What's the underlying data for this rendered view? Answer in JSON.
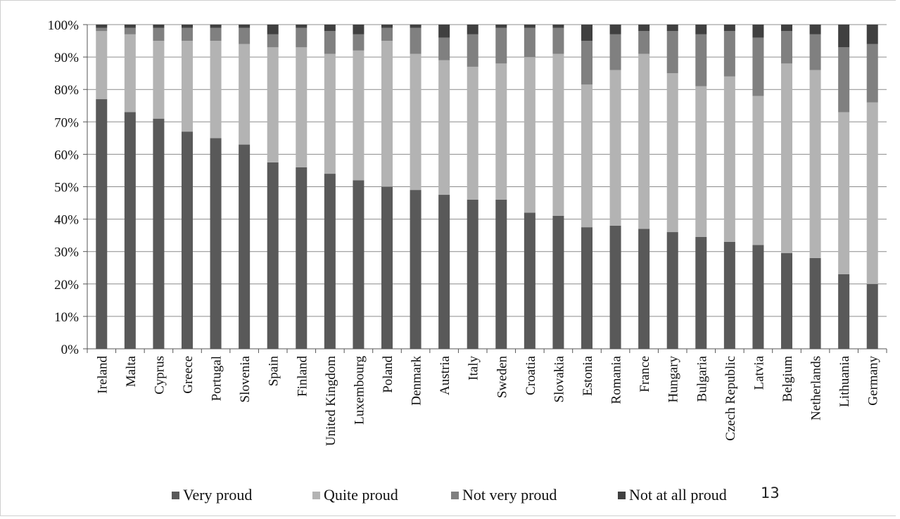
{
  "chart_data": {
    "type": "bar",
    "stacked": true,
    "title": "",
    "xlabel": "",
    "ylabel": "",
    "ylim": [
      0,
      100
    ],
    "yticks": [
      "0%",
      "10%",
      "20%",
      "30%",
      "40%",
      "50%",
      "60%",
      "70%",
      "80%",
      "90%",
      "100%"
    ],
    "grid": true,
    "legend_position": "bottom",
    "categories": [
      "Ireland",
      "Malta",
      "Cyprus",
      "Greece",
      "Portugal",
      "Slovenia",
      "Spain",
      "Finland",
      "United Kingdom",
      "Luxembourg",
      "Poland",
      "Denmark",
      "Austria",
      "Italy",
      "Sweden",
      "Croatia",
      "Slovakia",
      "Estonia",
      "Romania",
      "France",
      "Hungary",
      "Bulgaria",
      "Czech Republic",
      "Latvia",
      "Belgium",
      "Netherlands",
      "Lithuania",
      "Germany"
    ],
    "series": [
      {
        "name": "Very proud",
        "color": "#595959",
        "values": [
          77,
          73,
          71,
          67,
          65,
          63,
          57.5,
          56,
          54,
          52,
          50,
          49,
          47.5,
          46,
          46,
          42,
          41,
          37.5,
          38,
          37,
          36,
          34.5,
          33,
          32,
          29.5,
          28,
          23,
          20
        ]
      },
      {
        "name": "Quite proud",
        "color": "#b3b3b3",
        "values": [
          21,
          24,
          24,
          28,
          30,
          31,
          35.5,
          37,
          37,
          40,
          45,
          42,
          41.5,
          41,
          42,
          48,
          50,
          44,
          48,
          54,
          49,
          46.5,
          51,
          46,
          58.5,
          58,
          50,
          56
        ]
      },
      {
        "name": "Not very proud",
        "color": "#808080",
        "values": [
          1,
          2,
          4,
          4,
          4,
          5,
          4,
          6,
          7,
          5,
          4,
          8,
          7,
          10,
          11,
          9,
          8,
          13.5,
          11,
          7,
          13,
          16,
          14,
          18,
          10,
          11,
          20,
          18
        ]
      },
      {
        "name": "Not at all proud",
        "color": "#404040",
        "values": [
          1,
          1,
          1,
          1,
          1,
          1,
          3,
          1,
          2,
          3,
          1,
          1,
          4,
          3,
          1,
          1,
          1,
          5,
          3,
          2,
          2,
          3,
          2,
          4,
          2,
          3,
          7,
          6
        ]
      }
    ]
  },
  "page_number": "13"
}
